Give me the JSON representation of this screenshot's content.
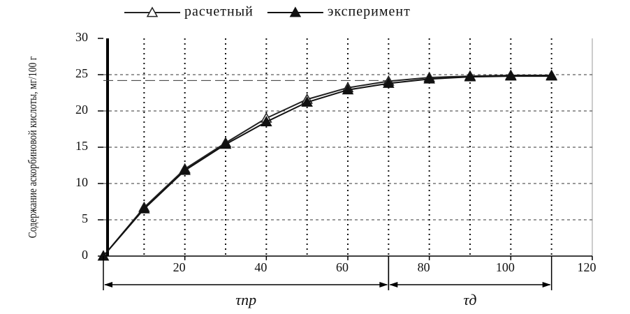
{
  "chart_data": {
    "type": "line",
    "y_label": "Содержание аскорбиновой кислоты, мг/100 г",
    "x": [
      0,
      10,
      20,
      30,
      40,
      50,
      60,
      70,
      80,
      90,
      100,
      110
    ],
    "series": [
      {
        "name": "расчетный",
        "color": "#222222",
        "marker": "open-triangle",
        "values": [
          0,
          6.7,
          12,
          15.6,
          19,
          21.6,
          23.2,
          24.1,
          24.6,
          24.8,
          24.9,
          24.9
        ]
      },
      {
        "name": "эксперимент",
        "color": "#111111",
        "marker": "filled-triangle",
        "values": [
          0,
          6.5,
          11.8,
          15.4,
          18.5,
          21.2,
          22.9,
          23.8,
          24.4,
          24.7,
          24.8,
          24.8
        ]
      }
    ],
    "xlim": [
      0,
      120
    ],
    "xticks": [
      20,
      40,
      60,
      80,
      100,
      120
    ],
    "ylim": [
      0,
      30
    ],
    "yticks": [
      0,
      5,
      10,
      15,
      20,
      25,
      30
    ],
    "grid": true,
    "reference_line": {
      "y": 24.2,
      "x": [
        0,
        70
      ]
    },
    "annotations": [
      {
        "text": "τпр",
        "range": [
          0,
          70
        ]
      },
      {
        "text": "τд",
        "range": [
          70,
          110
        ]
      }
    ]
  }
}
